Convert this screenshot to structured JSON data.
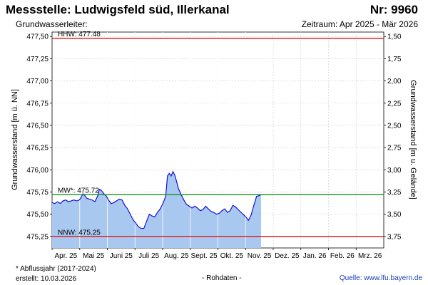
{
  "header": {
    "title": "Messstelle: Ludwigsfeld süd, Illerkanal",
    "number": "Nr: 9960",
    "subtitle": "Grundwasserleiter:",
    "period": "Zeitraum: Apr 2025 - Mär 2026"
  },
  "footer": {
    "footnote": "* Abflussjahr (2017-2024)",
    "created": "erstellt:  10.03.2026",
    "raw": "- Rohdaten -",
    "source": "Quelle: www.lfu.bayern.de"
  },
  "colors": {
    "area_fill": "#a9c8ef",
    "line": "#1010d8",
    "hhw": "#e01010",
    "nnw": "#e01010",
    "mw": "#10901a",
    "grid": "#cccccc"
  },
  "chart_data": {
    "type": "area",
    "title": "Messstelle: Ludwigsfeld süd, Illerkanal",
    "ylabel": "Grundwasserstand [m ü. NN]",
    "y2label": "Grundwasserstand [m u. Gelände]",
    "ylim": [
      475.12,
      477.55
    ],
    "y_ticks": [
      475.25,
      475.5,
      475.75,
      476.0,
      476.25,
      476.5,
      476.75,
      477.0,
      477.25,
      477.5
    ],
    "y_tick_labels": [
      "475,25",
      "475,50",
      "475,75",
      "476,00",
      "476,25",
      "476,50",
      "476,75",
      "477,00",
      "477,25",
      "477,50"
    ],
    "y2_ticks": [
      1.5,
      1.75,
      2.0,
      2.25,
      2.5,
      2.75,
      3.0,
      3.25,
      3.5,
      3.75
    ],
    "y2_tick_labels": [
      "1,50",
      "1,75",
      "2,00",
      "2,25",
      "2,50",
      "2,75",
      "3,00",
      "3,25",
      "3,50",
      "3,75"
    ],
    "y2_reference": 479.0,
    "x_months": [
      "Apr. 25",
      "Mai 25",
      "Juni 25",
      "Juli 25",
      "Aug. 25",
      "Sept. 25",
      "Okt. 25",
      "Nov. 25",
      "Dez. 25",
      "Jan. 26",
      "Feb. 26",
      "Mrz. 26"
    ],
    "xlim_days": [
      0,
      365
    ],
    "grid": true,
    "reference_lines": [
      {
        "name": "HHW",
        "label": "HHW: 477.48",
        "value": 477.48
      },
      {
        "name": "MW",
        "label": "MW*: 475.72",
        "value": 475.72
      },
      {
        "name": "NNW",
        "label": "NNW: 475.25",
        "value": 475.25
      }
    ],
    "series": [
      {
        "values": [
          [
            0,
            475.63
          ],
          [
            3,
            475.62
          ],
          [
            6,
            475.64
          ],
          [
            9,
            475.62
          ],
          [
            12,
            475.65
          ],
          [
            15,
            475.66
          ],
          [
            18,
            475.64
          ],
          [
            21,
            475.65
          ],
          [
            24,
            475.66
          ],
          [
            27,
            475.65
          ],
          [
            30,
            475.66
          ],
          [
            32,
            475.69
          ],
          [
            34,
            475.73
          ],
          [
            36,
            475.71
          ],
          [
            38,
            475.68
          ],
          [
            41,
            475.67
          ],
          [
            44,
            475.66
          ],
          [
            47,
            475.64
          ],
          [
            50,
            475.7
          ],
          [
            52,
            475.78
          ],
          [
            54,
            475.77
          ],
          [
            57,
            475.73
          ],
          [
            60,
            475.7
          ],
          [
            62,
            475.66
          ],
          [
            65,
            475.62
          ],
          [
            68,
            475.63
          ],
          [
            71,
            475.65
          ],
          [
            74,
            475.67
          ],
          [
            77,
            475.66
          ],
          [
            80,
            475.6
          ],
          [
            83,
            475.56
          ],
          [
            86,
            475.5
          ],
          [
            89,
            475.44
          ],
          [
            92,
            475.4
          ],
          [
            95,
            475.36
          ],
          [
            98,
            475.34
          ],
          [
            101,
            475.34
          ],
          [
            104,
            475.42
          ],
          [
            107,
            475.5
          ],
          [
            110,
            475.48
          ],
          [
            113,
            475.47
          ],
          [
            116,
            475.52
          ],
          [
            119,
            475.56
          ],
          [
            122,
            475.62
          ],
          [
            125,
            475.7
          ],
          [
            127,
            475.93
          ],
          [
            129,
            475.96
          ],
          [
            131,
            475.93
          ],
          [
            133,
            475.98
          ],
          [
            135,
            475.94
          ],
          [
            137,
            475.87
          ],
          [
            139,
            475.79
          ],
          [
            142,
            475.72
          ],
          [
            145,
            475.66
          ],
          [
            148,
            475.61
          ],
          [
            151,
            475.59
          ],
          [
            154,
            475.57
          ],
          [
            157,
            475.59
          ],
          [
            160,
            475.57
          ],
          [
            163,
            475.54
          ],
          [
            166,
            475.55
          ],
          [
            169,
            475.59
          ],
          [
            172,
            475.56
          ],
          [
            175,
            475.53
          ],
          [
            178,
            475.52
          ],
          [
            181,
            475.5
          ],
          [
            184,
            475.51
          ],
          [
            187,
            475.54
          ],
          [
            190,
            475.56
          ],
          [
            193,
            475.52
          ],
          [
            196,
            475.54
          ],
          [
            199,
            475.6
          ],
          [
            202,
            475.58
          ],
          [
            205,
            475.55
          ],
          [
            208,
            475.52
          ],
          [
            211,
            475.49
          ],
          [
            214,
            475.46
          ],
          [
            216,
            475.43
          ],
          [
            219,
            475.49
          ],
          [
            222,
            475.6
          ],
          [
            225,
            475.7
          ],
          [
            228,
            475.71
          ],
          [
            230,
            475.72
          ]
        ]
      }
    ]
  }
}
